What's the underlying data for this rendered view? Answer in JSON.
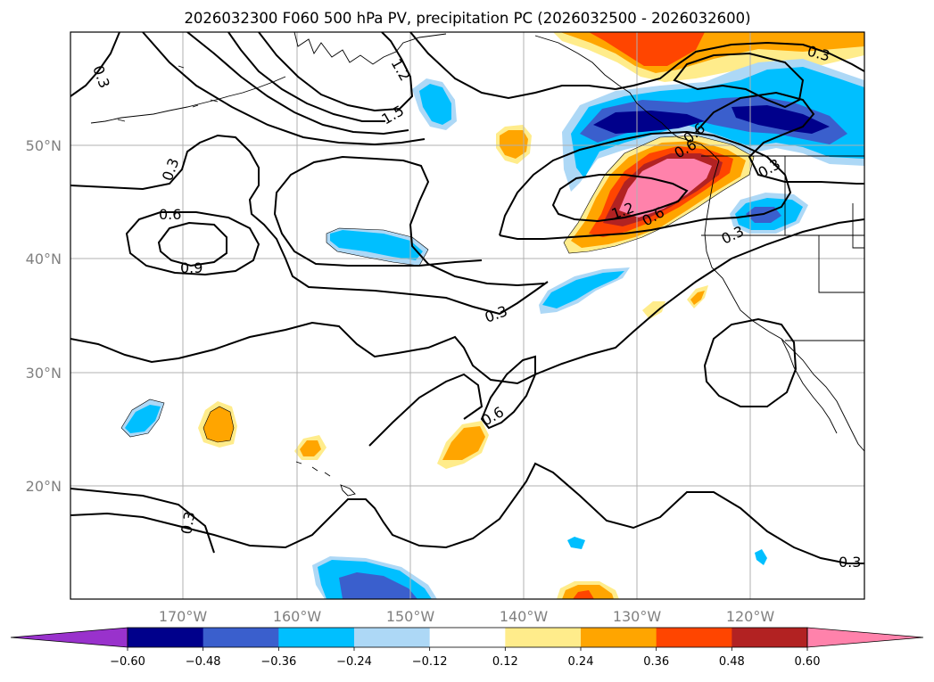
{
  "title": "2026032300 F060 500 hPa PV, precipitation PC (2026032500 - 2026032600)",
  "map": {
    "lat_labels": [
      "50°N",
      "40°N",
      "30°N",
      "20°N"
    ],
    "lon_labels": [
      "170°W",
      "160°W",
      "150°W",
      "140°W",
      "130°W",
      "120°W"
    ],
    "gridlines": true
  },
  "pv_contour_labels": [
    "0.3",
    "0.3",
    "0.6",
    "0.9",
    "1.2",
    "1.5",
    "0.3",
    "0.6",
    "1.2",
    "0.6",
    "0.3",
    "0.3",
    "0.6",
    "0.3",
    "0.3",
    "0.6",
    "0.3"
  ],
  "colorbar": {
    "ticks": [
      "−0.60",
      "−0.48",
      "−0.36",
      "−0.24",
      "−0.12",
      "0.12",
      "0.24",
      "0.36",
      "0.48",
      "0.60"
    ],
    "colors": [
      "#9932cc",
      "#00008b",
      "#3a5fcd",
      "#00bfff",
      "#add8f6",
      "#ffffff",
      "#ffec8b",
      "#ffa500",
      "#ff4500",
      "#b22222",
      "#ff82ab"
    ],
    "extend": "both"
  }
}
